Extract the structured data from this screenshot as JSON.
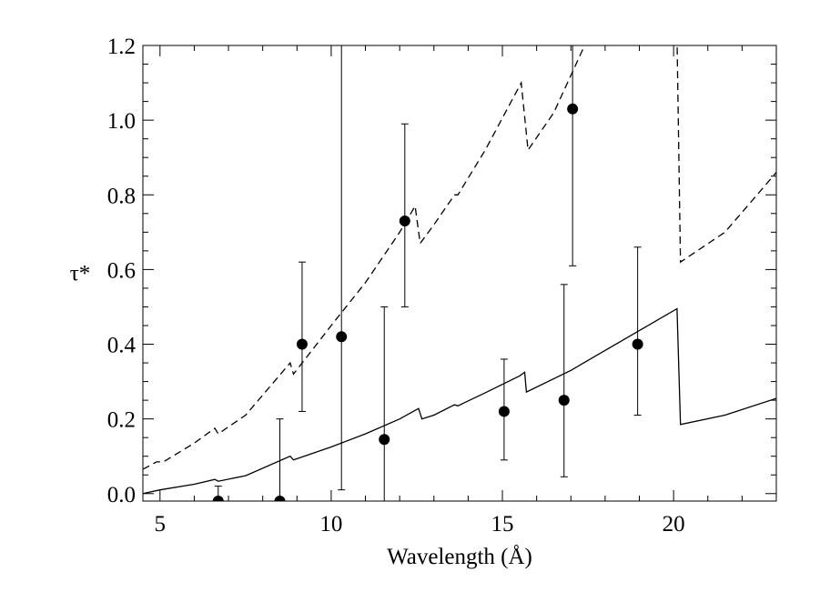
{
  "chart_data": {
    "type": "scatter",
    "title": "",
    "xlabel": "Wavelength (Å)",
    "ylabel": "τ*",
    "xlim": [
      4.5,
      23.0
    ],
    "ylim": [
      -0.02,
      1.2
    ],
    "x_ticks": [
      5,
      10,
      15,
      20
    ],
    "y_ticks": [
      0.0,
      0.2,
      0.4,
      0.6,
      0.8,
      1.0,
      1.2
    ],
    "x_tick_labels": [
      "5",
      "10",
      "15",
      "20"
    ],
    "y_tick_labels": [
      "0.0",
      "0.2",
      "0.4",
      "0.6",
      "0.8",
      "1.0",
      "1.2"
    ],
    "legend": "none",
    "grid": false,
    "series": [
      {
        "kind": "points_with_errorbars",
        "color": "#000000",
        "points": [
          {
            "x": 6.7,
            "y": -0.02,
            "ylo": -0.02,
            "yhi": 0.02
          },
          {
            "x": 8.5,
            "y": -0.02,
            "ylo": -0.02,
            "yhi": 0.2
          },
          {
            "x": 9.15,
            "y": 0.4,
            "ylo": 0.22,
            "yhi": 0.62
          },
          {
            "x": 10.3,
            "y": 0.42,
            "ylo": 0.01,
            "yhi": 1.2
          },
          {
            "x": 11.55,
            "y": 0.145,
            "ylo": -0.02,
            "yhi": 0.5
          },
          {
            "x": 12.15,
            "y": 0.73,
            "ylo": 0.5,
            "yhi": 0.99
          },
          {
            "x": 15.05,
            "y": 0.22,
            "ylo": 0.09,
            "yhi": 0.36
          },
          {
            "x": 16.8,
            "y": 0.25,
            "ylo": 0.045,
            "yhi": 0.56
          },
          {
            "x": 17.05,
            "y": 1.03,
            "ylo": 0.61,
            "yhi": 1.2
          },
          {
            "x": 18.95,
            "y": 0.4,
            "ylo": 0.21,
            "yhi": 0.66
          }
        ]
      },
      {
        "kind": "line",
        "style": "solid",
        "color": "#000000",
        "x": [
          4.5,
          5.0,
          6.0,
          6.6,
          6.7,
          7.5,
          8.8,
          8.9,
          10.0,
          11.0,
          12.0,
          12.55,
          12.65,
          13.0,
          13.6,
          13.7,
          14.5,
          15.5,
          15.65,
          15.7,
          17.0,
          18.5,
          20.1,
          20.2,
          21.5,
          23.0
        ],
        "y": [
          0.0,
          0.01,
          0.025,
          0.038,
          0.033,
          0.048,
          0.1,
          0.09,
          0.125,
          0.16,
          0.2,
          0.228,
          0.2,
          0.21,
          0.238,
          0.235,
          0.27,
          0.315,
          0.325,
          0.272,
          0.33,
          0.41,
          0.495,
          0.185,
          0.21,
          0.255
        ]
      },
      {
        "kind": "line",
        "style": "dashed",
        "color": "#000000",
        "x": [
          4.5,
          4.9,
          5.1,
          6.0,
          6.6,
          6.7,
          7.5,
          8.8,
          8.9,
          10.0,
          11.0,
          12.0,
          12.45,
          12.6,
          13.0,
          13.6,
          13.7,
          14.5,
          15.55,
          15.75,
          16.5,
          17.5,
          20.1,
          20.2,
          21.5,
          23.0
        ],
        "y": [
          0.065,
          0.085,
          0.085,
          0.135,
          0.175,
          0.16,
          0.21,
          0.35,
          0.32,
          0.45,
          0.565,
          0.7,
          0.77,
          0.67,
          0.72,
          0.8,
          0.8,
          0.92,
          1.1,
          0.92,
          1.02,
          1.22,
          1.22,
          0.62,
          0.7,
          0.86
        ]
      }
    ]
  }
}
